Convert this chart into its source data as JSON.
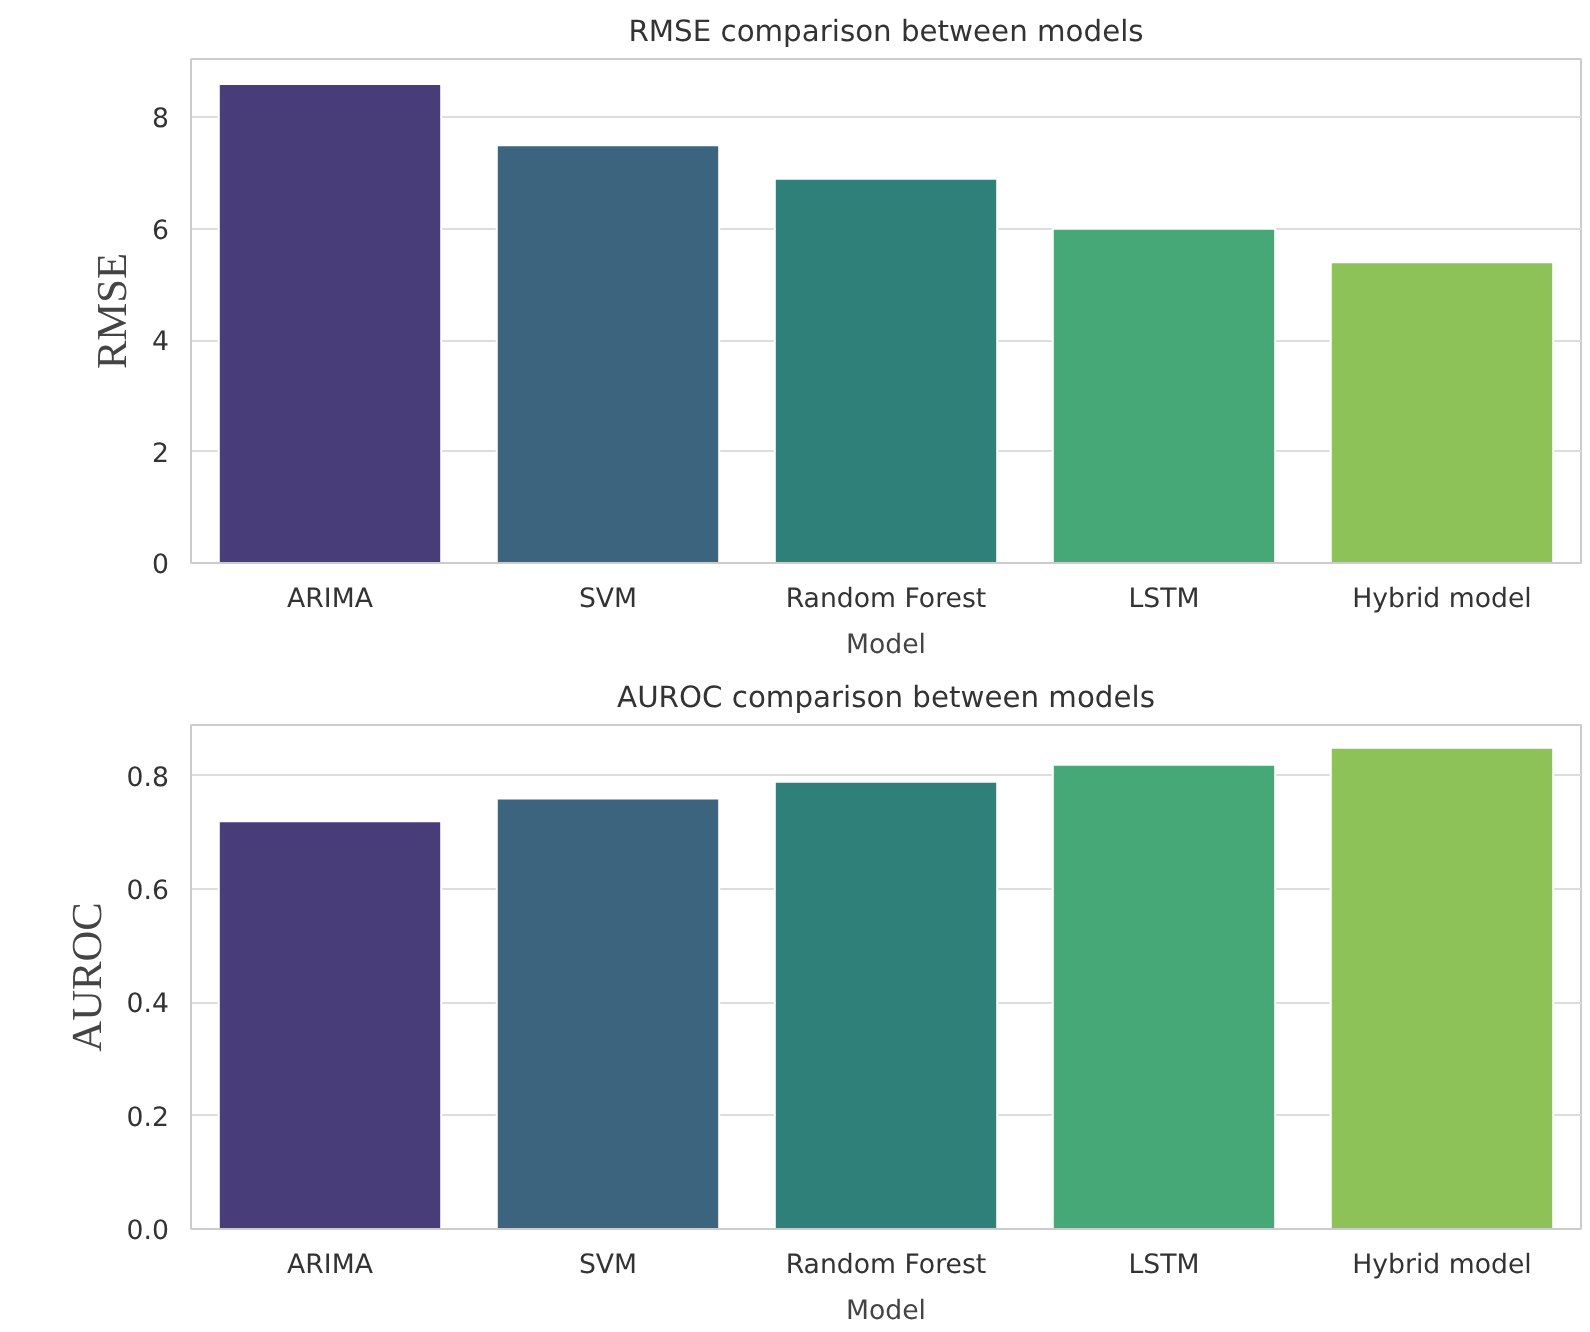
{
  "chart_data": [
    {
      "type": "bar",
      "title": "RMSE comparison between models",
      "xlabel": "Model",
      "ylabel": "RMSE",
      "categories": [
        "ARIMA",
        "SVM",
        "Random Forest",
        "LSTM",
        "Hybrid model"
      ],
      "values": [
        8.6,
        7.5,
        6.9,
        6.0,
        5.4
      ],
      "colors": [
        "#483d78",
        "#3d647f",
        "#2e8079",
        "#47a877",
        "#8cc257"
      ],
      "ylim": [
        0,
        9.05
      ],
      "yticks": [
        0,
        2,
        4,
        6,
        8
      ],
      "grid": "y"
    },
    {
      "type": "bar",
      "title": "AUROC comparison between models",
      "xlabel": "Model",
      "ylabel": "AUROC",
      "categories": [
        "ARIMA",
        "SVM",
        "Random Forest",
        "LSTM",
        "Hybrid model"
      ],
      "values": [
        0.72,
        0.76,
        0.79,
        0.82,
        0.85
      ],
      "colors": [
        "#483d78",
        "#3d647f",
        "#2e8079",
        "#47a877",
        "#8cc257"
      ],
      "ylim": [
        0,
        0.89
      ],
      "yticks": [
        {
          "value": 0,
          "label": "0.0"
        },
        0.2,
        0.4,
        0.6,
        0.8
      ],
      "grid": "y"
    }
  ]
}
